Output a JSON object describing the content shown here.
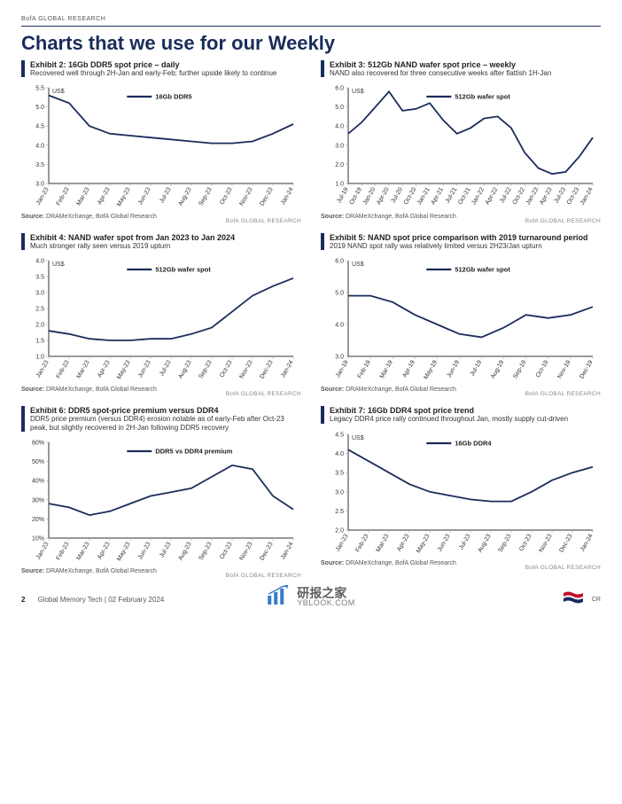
{
  "brand_header": "BofA GLOBAL RESEARCH",
  "page_title": "Charts that we use for our Weekly",
  "source_text": "DRAMeXchange, BofA Global Research",
  "source_label": "Source:",
  "brand_small": "BofA GLOBAL RESEARCH",
  "footer": {
    "page_number": "2",
    "doc": "Global Memory Tech | 02 February 2024",
    "cr": "CR"
  },
  "watermark": {
    "cn": "研报之家",
    "url": "YBLOOK.COM"
  },
  "yaxis_unit_currency": "US$",
  "line_color": "#1a2c5b",
  "axis_color": "#333333",
  "exhibits": [
    {
      "title": "Exhibit 2: 16Gb DDR5 spot price – daily",
      "subtitle": "Recovered well through 2H-Jan and early-Feb; further upside likely to continue",
      "legend": "16Gb DDR5",
      "y_unit": "US$",
      "y_ticks": [
        3.0,
        3.5,
        4.0,
        4.5,
        5.0,
        5.5
      ],
      "x_labels": [
        "Jan-23",
        "Feb-23",
        "Mar-23",
        "Apr-23",
        "May-23",
        "Jun-23",
        "Jul-23",
        "Aug-23",
        "Sep-23",
        "Oct-23",
        "Nov-23",
        "Dec-23",
        "Jan-24"
      ],
      "series": [
        5.3,
        5.1,
        4.5,
        4.3,
        4.25,
        4.2,
        4.15,
        4.1,
        4.05,
        4.05,
        4.1,
        4.3,
        4.55
      ]
    },
    {
      "title": "Exhibit 3: 512Gb NAND wafer spot price – weekly",
      "subtitle": "NAND also recovered for three consecutive weeks after flattish 1H-Jan",
      "legend": "512Gb wafer spot",
      "y_unit": "US$",
      "y_ticks": [
        1,
        2,
        3,
        4,
        5,
        6
      ],
      "x_labels": [
        "Jul-19",
        "Oct-19",
        "Jan-20",
        "Apr-20",
        "Jul-20",
        "Oct-20",
        "Jan-21",
        "Apr-21",
        "Jul-21",
        "Oct-21",
        "Jan-22",
        "Apr-22",
        "Jul-22",
        "Oct-22",
        "Jan-23",
        "Apr-23",
        "Jul-23",
        "Oct-23",
        "Jan-24"
      ],
      "series": [
        3.6,
        4.2,
        5.0,
        5.8,
        4.8,
        4.9,
        5.2,
        4.3,
        3.6,
        3.9,
        4.4,
        4.5,
        3.9,
        2.6,
        1.8,
        1.5,
        1.6,
        2.4,
        3.4
      ]
    },
    {
      "title": "Exhibit 4: NAND wafer spot from Jan 2023 to Jan 2024",
      "subtitle": "Much stronger rally seen versus 2019 upturn",
      "legend": "512Gb wafer spot",
      "y_unit": "US$",
      "y_ticks": [
        1.0,
        1.5,
        2.0,
        2.5,
        3.0,
        3.5,
        4.0
      ],
      "x_labels": [
        "Jan-23",
        "Feb-23",
        "Mar-23",
        "Apr-23",
        "May-23",
        "Jun-23",
        "Jul-23",
        "Aug-23",
        "Sep-23",
        "Oct-23",
        "Nov-23",
        "Dec-23",
        "Jan-24"
      ],
      "series": [
        1.8,
        1.7,
        1.55,
        1.5,
        1.5,
        1.55,
        1.55,
        1.7,
        1.9,
        2.4,
        2.9,
        3.2,
        3.45
      ]
    },
    {
      "title": "Exhibit 5: NAND spot price comparison with 2019 turnaround period",
      "subtitle": "2019 NAND spot rally was relatively limited versus 2H23/Jan upturn",
      "legend": "512Gb wafer spot",
      "y_unit": "US$",
      "y_ticks": [
        3,
        4,
        5,
        6
      ],
      "x_labels": [
        "Jan-19",
        "Feb-19",
        "Mar-19",
        "Apr-19",
        "May-19",
        "Jun-19",
        "Jul-19",
        "Aug-19",
        "Sep-19",
        "Oct-19",
        "Nov-19",
        "Dec-19"
      ],
      "series": [
        4.9,
        4.9,
        4.7,
        4.3,
        4.0,
        3.7,
        3.6,
        3.9,
        4.3,
        4.2,
        4.3,
        4.55
      ]
    },
    {
      "title": "Exhibit 6: DDR5 spot-price premium versus DDR4",
      "subtitle": "DDR5 price premium (versus DDR4) erosion notable as of early-Feb after Oct-23 peak, but slightly recovered in 2H-Jan following DDR5 recovery",
      "legend": "DDR5 vs DDR4 premium",
      "y_unit": "",
      "y_ticks_labels": [
        "10%",
        "20%",
        "30%",
        "40%",
        "50%",
        "60%"
      ],
      "y_ticks": [
        10,
        20,
        30,
        40,
        50,
        60
      ],
      "x_labels": [
        "Jan-23",
        "Feb-23",
        "Mar-23",
        "Apr-23",
        "May-23",
        "Jun-23",
        "Jul-23",
        "Aug-23",
        "Sep-23",
        "Oct-23",
        "Nov-23",
        "Dec-23",
        "Jan-24"
      ],
      "series": [
        28,
        26,
        22,
        24,
        28,
        32,
        34,
        36,
        42,
        48,
        46,
        32,
        25
      ]
    },
    {
      "title": "Exhibit 7: 16Gb DDR4 spot price trend",
      "subtitle": "Legacy DDR4 price rally continued throughout Jan, mostly supply cut-driven",
      "legend": "16Gb DDR4",
      "y_unit": "US$",
      "y_ticks": [
        2.0,
        2.5,
        3.0,
        3.5,
        4.0,
        4.5
      ],
      "x_labels": [
        "Jan-23",
        "Feb-23",
        "Mar-23",
        "Apr-23",
        "May-23",
        "Jun-23",
        "Jul-23",
        "Aug-23",
        "Sep-23",
        "Oct-23",
        "Nov-23",
        "Dec-23",
        "Jan-24"
      ],
      "series": [
        4.1,
        3.8,
        3.5,
        3.2,
        3.0,
        2.9,
        2.8,
        2.75,
        2.75,
        3.0,
        3.3,
        3.5,
        3.65
      ]
    }
  ]
}
